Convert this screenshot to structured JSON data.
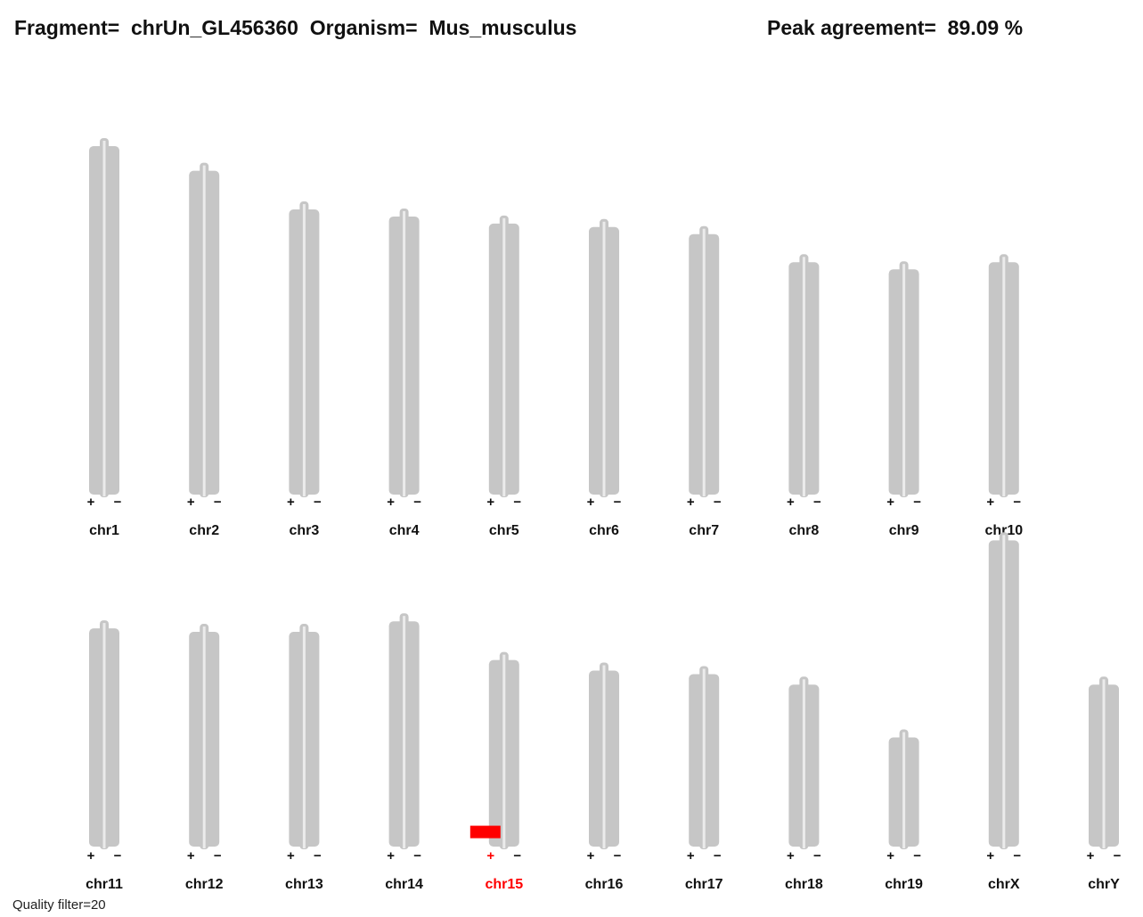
{
  "header": {
    "fragment_label": "Fragment=",
    "fragment_value": "chrUn_GL456360",
    "organism_label": "Organism=",
    "organism_value": "Mus_musculus",
    "peak_label": "Peak agreement=",
    "peak_value": "89.09 %"
  },
  "footer": {
    "quality_filter": "Quality filter=20"
  },
  "colors": {
    "chromosome": "#c6c6c6",
    "centerline": "#ebebeb",
    "highlight": "#ff0000",
    "text": "#111111"
  },
  "chart_data": {
    "type": "karyogram",
    "strand_labels": [
      "+",
      "−"
    ],
    "highlight": {
      "chromosome": "chr15",
      "strand": "+",
      "position_fraction": 0.045
    },
    "rows": [
      {
        "chromosomes": [
          {
            "name": "chr1",
            "relative_length": 0.99
          },
          {
            "name": "chr2",
            "relative_length": 0.92
          },
          {
            "name": "chr3",
            "relative_length": 0.81
          },
          {
            "name": "chr4",
            "relative_length": 0.79
          },
          {
            "name": "chr5",
            "relative_length": 0.77
          },
          {
            "name": "chr6",
            "relative_length": 0.76
          },
          {
            "name": "chr7",
            "relative_length": 0.74
          },
          {
            "name": "chr8",
            "relative_length": 0.66
          },
          {
            "name": "chr9",
            "relative_length": 0.64
          },
          {
            "name": "chr10",
            "relative_length": 0.66
          }
        ]
      },
      {
        "chromosomes": [
          {
            "name": "chr11",
            "relative_length": 0.62
          },
          {
            "name": "chr12",
            "relative_length": 0.61
          },
          {
            "name": "chr13",
            "relative_length": 0.61
          },
          {
            "name": "chr14",
            "relative_length": 0.64
          },
          {
            "name": "chr15",
            "relative_length": 0.53
          },
          {
            "name": "chr16",
            "relative_length": 0.5
          },
          {
            "name": "chr17",
            "relative_length": 0.49
          },
          {
            "name": "chr18",
            "relative_length": 0.46
          },
          {
            "name": "chr19",
            "relative_length": 0.31
          },
          {
            "name": "chrX",
            "relative_length": 0.87
          },
          {
            "name": "chrY",
            "relative_length": 0.46
          }
        ]
      }
    ]
  }
}
